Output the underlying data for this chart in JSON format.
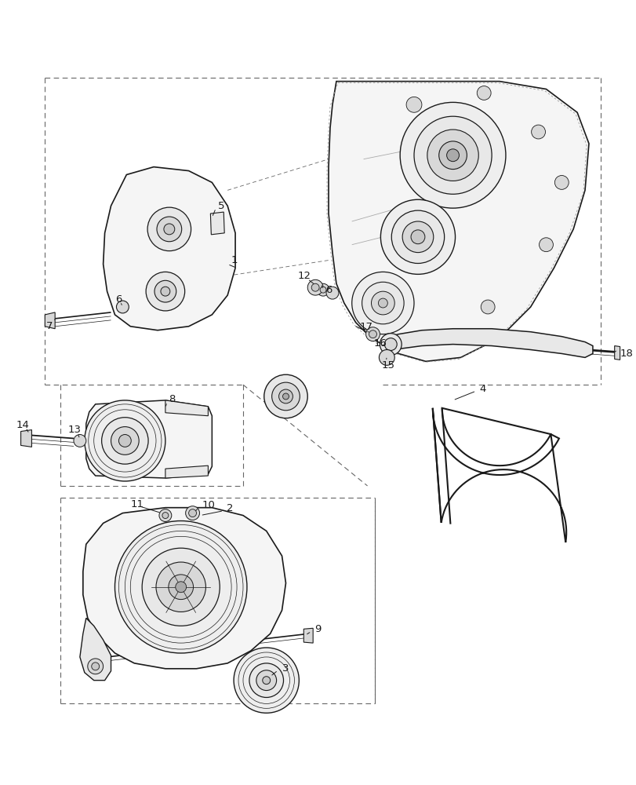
{
  "bg": "#ffffff",
  "lc": "#1a1a1a",
  "gray1": "#f5f5f5",
  "gray2": "#e8e8e8",
  "gray3": "#d8d8d8",
  "gray4": "#c8c8c8",
  "dashed_color": "#666666",
  "fig_width": 8.12,
  "fig_height": 10.0,
  "dpi": 100
}
